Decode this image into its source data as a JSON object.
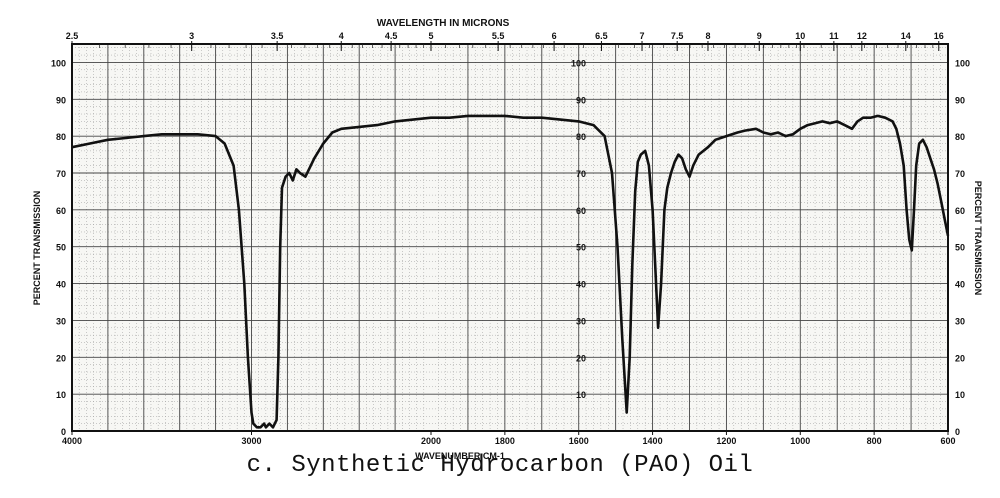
{
  "chart_data": {
    "type": "line",
    "title": "",
    "caption": "c.   Synthetic Hydrocarbon (PAO) Oil",
    "xlabel": "WAVENUMBER CM-1",
    "x2label": "WAVELENGTH IN MICRONS",
    "ylabel": "PERCENT TRANSMISSION",
    "ylim": [
      0,
      105
    ],
    "x_scale": "piecewise-linear (4000-2000 and 2000-600 segments)",
    "x_ticks": [
      "4000",
      "3000",
      "2000",
      "1800",
      "1600",
      "1400",
      "1200",
      "1000",
      "800",
      "600"
    ],
    "x2_ticks": [
      "2.5",
      "3",
      "3.5",
      "4",
      "4.5",
      "5",
      "5.5",
      "6",
      "6.5",
      "7",
      "7.5",
      "8",
      "9",
      "10",
      "11",
      "12",
      "14",
      "16"
    ],
    "y_ticks": [
      "0",
      "10",
      "20",
      "30",
      "40",
      "50",
      "60",
      "70",
      "80",
      "90",
      "100"
    ],
    "inner_y_ticks": [
      "10",
      "20",
      "30",
      "40",
      "50",
      "60",
      "70",
      "80",
      "90",
      "100"
    ],
    "grid": true,
    "series": [
      {
        "color": "#111111",
        "points": [
          [
            4000,
            77
          ],
          [
            3900,
            78
          ],
          [
            3800,
            79
          ],
          [
            3700,
            79.5
          ],
          [
            3600,
            80
          ],
          [
            3500,
            80.5
          ],
          [
            3400,
            80.5
          ],
          [
            3300,
            80.5
          ],
          [
            3200,
            80
          ],
          [
            3150,
            78
          ],
          [
            3100,
            72
          ],
          [
            3070,
            60
          ],
          [
            3040,
            40
          ],
          [
            3020,
            20
          ],
          [
            3000,
            5
          ],
          [
            2990,
            2
          ],
          [
            2970,
            1
          ],
          [
            2950,
            1
          ],
          [
            2930,
            2
          ],
          [
            2920,
            1
          ],
          [
            2900,
            2
          ],
          [
            2880,
            1
          ],
          [
            2860,
            3
          ],
          [
            2850,
            20
          ],
          [
            2840,
            50
          ],
          [
            2830,
            66
          ],
          [
            2810,
            69
          ],
          [
            2790,
            70
          ],
          [
            2770,
            68
          ],
          [
            2750,
            71
          ],
          [
            2730,
            70
          ],
          [
            2700,
            69
          ],
          [
            2650,
            74
          ],
          [
            2600,
            78
          ],
          [
            2550,
            81
          ],
          [
            2500,
            82
          ],
          [
            2400,
            82.5
          ],
          [
            2300,
            83
          ],
          [
            2200,
            84
          ],
          [
            2100,
            84.5
          ],
          [
            2000,
            85
          ],
          [
            1950,
            85
          ],
          [
            1900,
            85.5
          ],
          [
            1850,
            85.5
          ],
          [
            1800,
            85.5
          ],
          [
            1750,
            85
          ],
          [
            1700,
            85
          ],
          [
            1650,
            84.5
          ],
          [
            1600,
            84
          ],
          [
            1560,
            83
          ],
          [
            1530,
            80
          ],
          [
            1510,
            70
          ],
          [
            1495,
            50
          ],
          [
            1482,
            25
          ],
          [
            1470,
            5
          ],
          [
            1462,
            20
          ],
          [
            1455,
            45
          ],
          [
            1447,
            65
          ],
          [
            1440,
            73
          ],
          [
            1432,
            75
          ],
          [
            1420,
            76
          ],
          [
            1410,
            72
          ],
          [
            1400,
            60
          ],
          [
            1393,
            45
          ],
          [
            1385,
            28
          ],
          [
            1377,
            40
          ],
          [
            1368,
            60
          ],
          [
            1360,
            66
          ],
          [
            1350,
            70
          ],
          [
            1340,
            73
          ],
          [
            1330,
            75
          ],
          [
            1320,
            74
          ],
          [
            1310,
            71
          ],
          [
            1300,
            69
          ],
          [
            1290,
            72
          ],
          [
            1275,
            75
          ],
          [
            1250,
            77
          ],
          [
            1230,
            79
          ],
          [
            1200,
            80
          ],
          [
            1170,
            81
          ],
          [
            1150,
            81.5
          ],
          [
            1120,
            82
          ],
          [
            1100,
            81
          ],
          [
            1080,
            80.5
          ],
          [
            1060,
            81
          ],
          [
            1040,
            80
          ],
          [
            1020,
            80.5
          ],
          [
            1000,
            82
          ],
          [
            980,
            83
          ],
          [
            960,
            83.5
          ],
          [
            940,
            84
          ],
          [
            920,
            83.5
          ],
          [
            900,
            84
          ],
          [
            880,
            83
          ],
          [
            860,
            82
          ],
          [
            845,
            84
          ],
          [
            830,
            85
          ],
          [
            810,
            85
          ],
          [
            790,
            85.5
          ],
          [
            770,
            85
          ],
          [
            750,
            84
          ],
          [
            740,
            82
          ],
          [
            730,
            78
          ],
          [
            720,
            72
          ],
          [
            712,
            60
          ],
          [
            705,
            52
          ],
          [
            698,
            49
          ],
          [
            692,
            60
          ],
          [
            686,
            72
          ],
          [
            678,
            78
          ],
          [
            668,
            79
          ],
          [
            658,
            77
          ],
          [
            648,
            74
          ],
          [
            638,
            71
          ],
          [
            628,
            67
          ],
          [
            618,
            62
          ],
          [
            608,
            57
          ],
          [
            600,
            53
          ]
        ]
      }
    ]
  }
}
